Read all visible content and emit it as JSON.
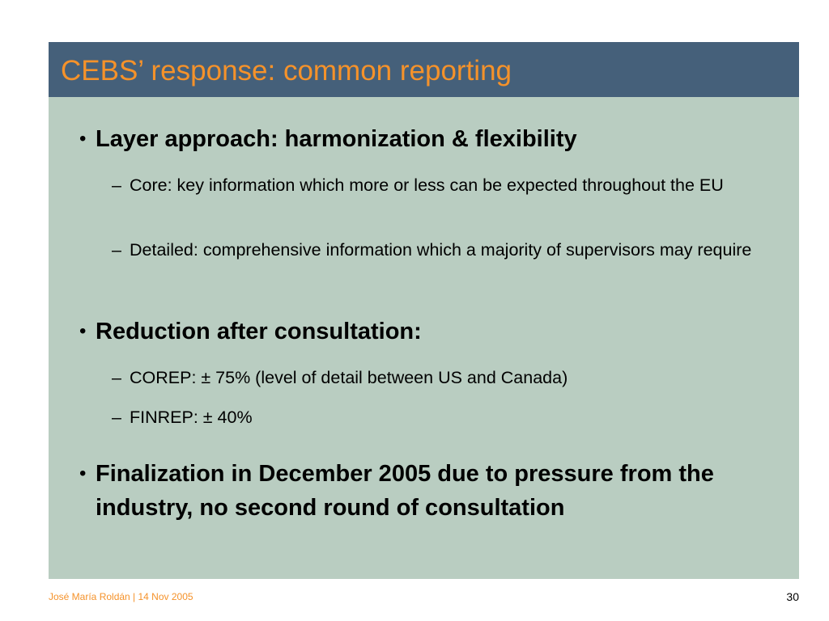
{
  "slide": {
    "title": "CEBS’ response: common reporting",
    "bullet_marker": "•",
    "sub_marker": "–",
    "bullets": [
      {
        "text": "Layer approach: harmonization & flexibility",
        "subs": [
          "Core: key information which more or less can be expected throughout the EU",
          "Detailed: comprehensive information which a majority of supervisors may require"
        ]
      },
      {
        "text": "Reduction after consultation:",
        "subs": [
          "COREP: ± 75% (level of detail between US and Canada)",
          "FINREP: ± 40%"
        ]
      },
      {
        "text": "Finalization in December 2005 due to pressure from the industry, no second round of consultation",
        "subs": []
      }
    ]
  },
  "footer": {
    "author_date": "José María Roldán | 14 Nov 2005",
    "page_number": "30"
  },
  "colors": {
    "header_bg": "#45607a",
    "title_text": "#f5922a",
    "body_bg": "#b9cdc1",
    "footer_text": "#f5922a"
  }
}
